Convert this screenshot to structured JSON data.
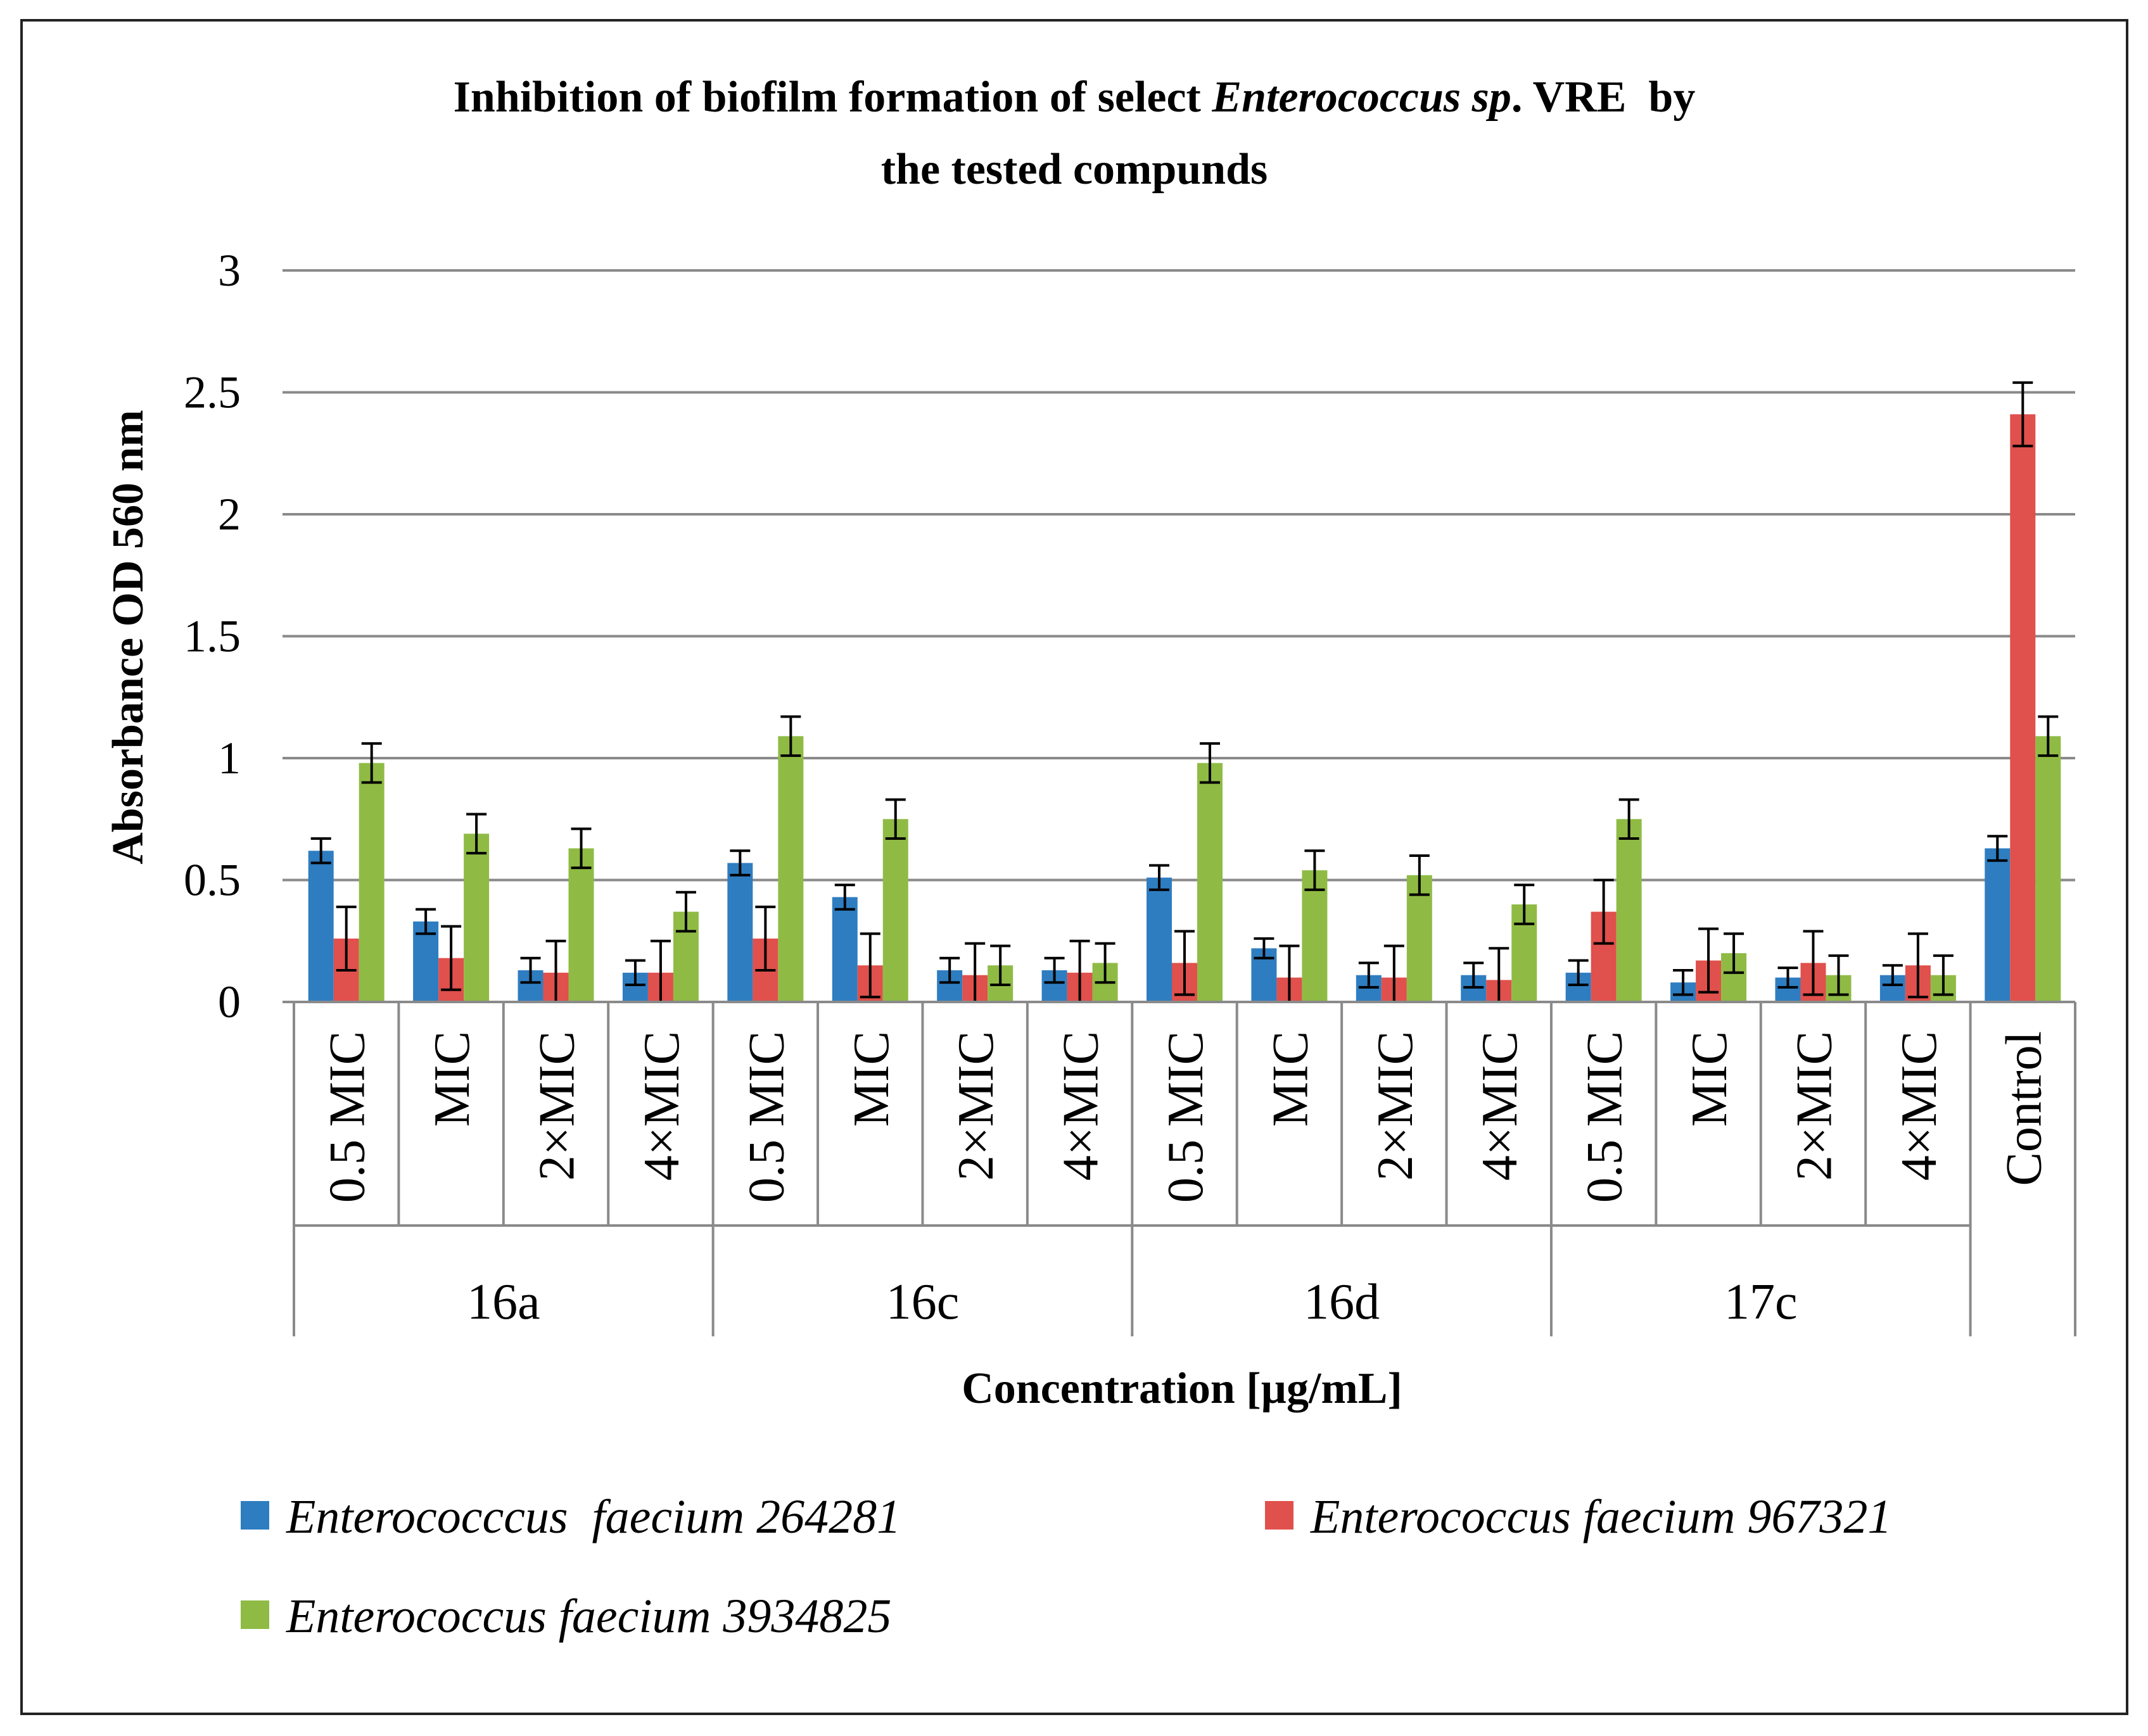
{
  "chart_data": {
    "type": "bar",
    "title_line1_parts": [
      "Inhibition of biofilm formation of select ",
      "Enterococcus sp",
      ". VRE  by"
    ],
    "title_line2": "the tested compunds",
    "xlabel": "Concentration [µg/mL]",
    "ylabel": "Absorbance  OD 560 nm",
    "ylim": [
      0,
      3
    ],
    "yticks": [
      0,
      0.5,
      1,
      1.5,
      2,
      2.5,
      3
    ],
    "ytick_labels": [
      "0",
      "0.5",
      "1",
      "1.5",
      "2",
      "2.5",
      "3"
    ],
    "grid": true,
    "legend_position": "bottom",
    "categories": [
      "0.5 MIC",
      "MIC",
      "2×MIC",
      "4×MIC",
      "0.5 MIC",
      "MIC",
      "2×MIC",
      "4×MIC",
      "0.5 MIC",
      "MIC",
      "2×MIC",
      "4×MIC",
      "0.5 MIC",
      "MIC",
      "2×MIC",
      "4×MIC",
      "Control"
    ],
    "groups": [
      {
        "label": "16a",
        "count": 4
      },
      {
        "label": "16c",
        "count": 4
      },
      {
        "label": "16d",
        "count": 4
      },
      {
        "label": "17c",
        "count": 4
      }
    ],
    "series": [
      {
        "name": "Enterococccus  faecium 264281",
        "color": "#2e7dc1",
        "values": [
          0.62,
          0.33,
          0.13,
          0.12,
          0.57,
          0.43,
          0.13,
          0.13,
          0.51,
          0.22,
          0.11,
          0.11,
          0.12,
          0.08,
          0.1,
          0.11,
          0.63
        ],
        "errors": [
          0.05,
          0.05,
          0.05,
          0.05,
          0.05,
          0.05,
          0.05,
          0.05,
          0.05,
          0.04,
          0.05,
          0.05,
          0.05,
          0.05,
          0.04,
          0.04,
          0.05
        ]
      },
      {
        "name": "Enterococcus faecium 967321",
        "color": "#e0504c",
        "values": [
          0.26,
          0.18,
          0.12,
          0.12,
          0.26,
          0.15,
          0.11,
          0.12,
          0.16,
          0.1,
          0.1,
          0.09,
          0.37,
          0.17,
          0.16,
          0.15,
          2.41
        ],
        "errors": [
          0.13,
          0.13,
          0.13,
          0.13,
          0.13,
          0.13,
          0.13,
          0.13,
          0.13,
          0.13,
          0.13,
          0.13,
          0.13,
          0.13,
          0.13,
          0.13,
          0.13
        ]
      },
      {
        "name": "Enterococcus faecium 3934825",
        "color": "#8fbb45",
        "values": [
          0.98,
          0.69,
          0.63,
          0.37,
          1.09,
          0.75,
          0.15,
          0.16,
          0.98,
          0.54,
          0.52,
          0.4,
          0.75,
          0.2,
          0.11,
          0.11,
          1.09
        ],
        "errors": [
          0.08,
          0.08,
          0.08,
          0.08,
          0.08,
          0.08,
          0.08,
          0.08,
          0.08,
          0.08,
          0.08,
          0.08,
          0.08,
          0.08,
          0.08,
          0.08,
          0.08
        ]
      }
    ]
  }
}
